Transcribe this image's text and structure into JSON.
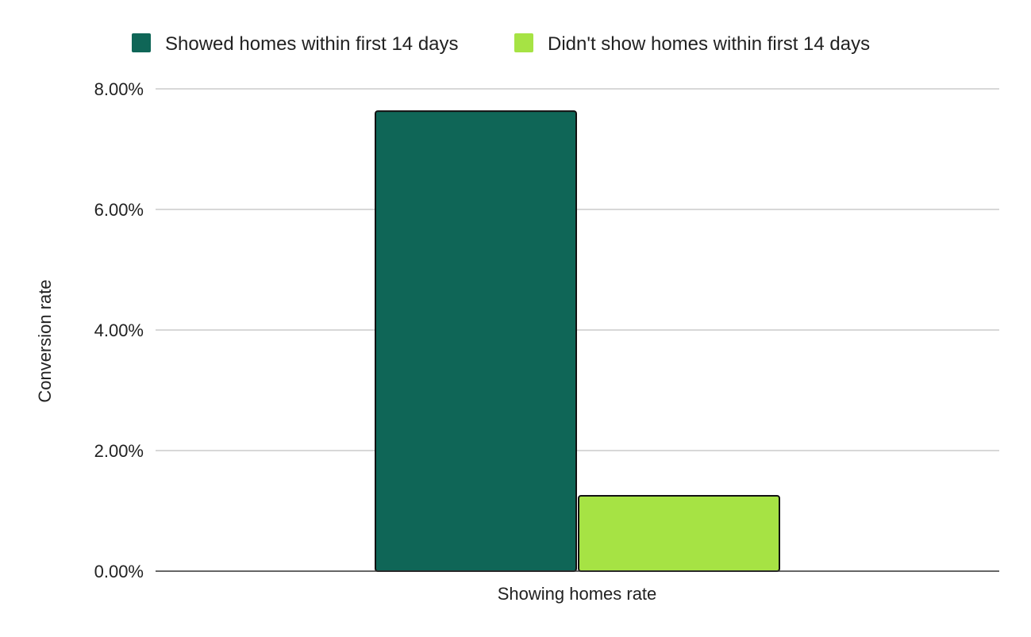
{
  "chart_data": {
    "type": "bar",
    "title": "",
    "xlabel": "",
    "ylabel": "Conversion rate",
    "categories": [
      "Showing homes rate"
    ],
    "series": [
      {
        "name": "Showed homes within first 14 days",
        "values": [
          7.63
        ],
        "color": "#0f6657"
      },
      {
        "name": "Didn't show homes within first 14 days",
        "values": [
          1.25
        ],
        "color": "#a6e344"
      }
    ],
    "ylim": [
      0,
      8
    ],
    "y_ticks": [
      {
        "value": 0,
        "label": "0.00%"
      },
      {
        "value": 2,
        "label": "2.00%"
      },
      {
        "value": 4,
        "label": "4.00%"
      },
      {
        "value": 6,
        "label": "6.00%"
      },
      {
        "value": 8,
        "label": "8.00%"
      }
    ],
    "grid": true,
    "legend": "top-center"
  }
}
